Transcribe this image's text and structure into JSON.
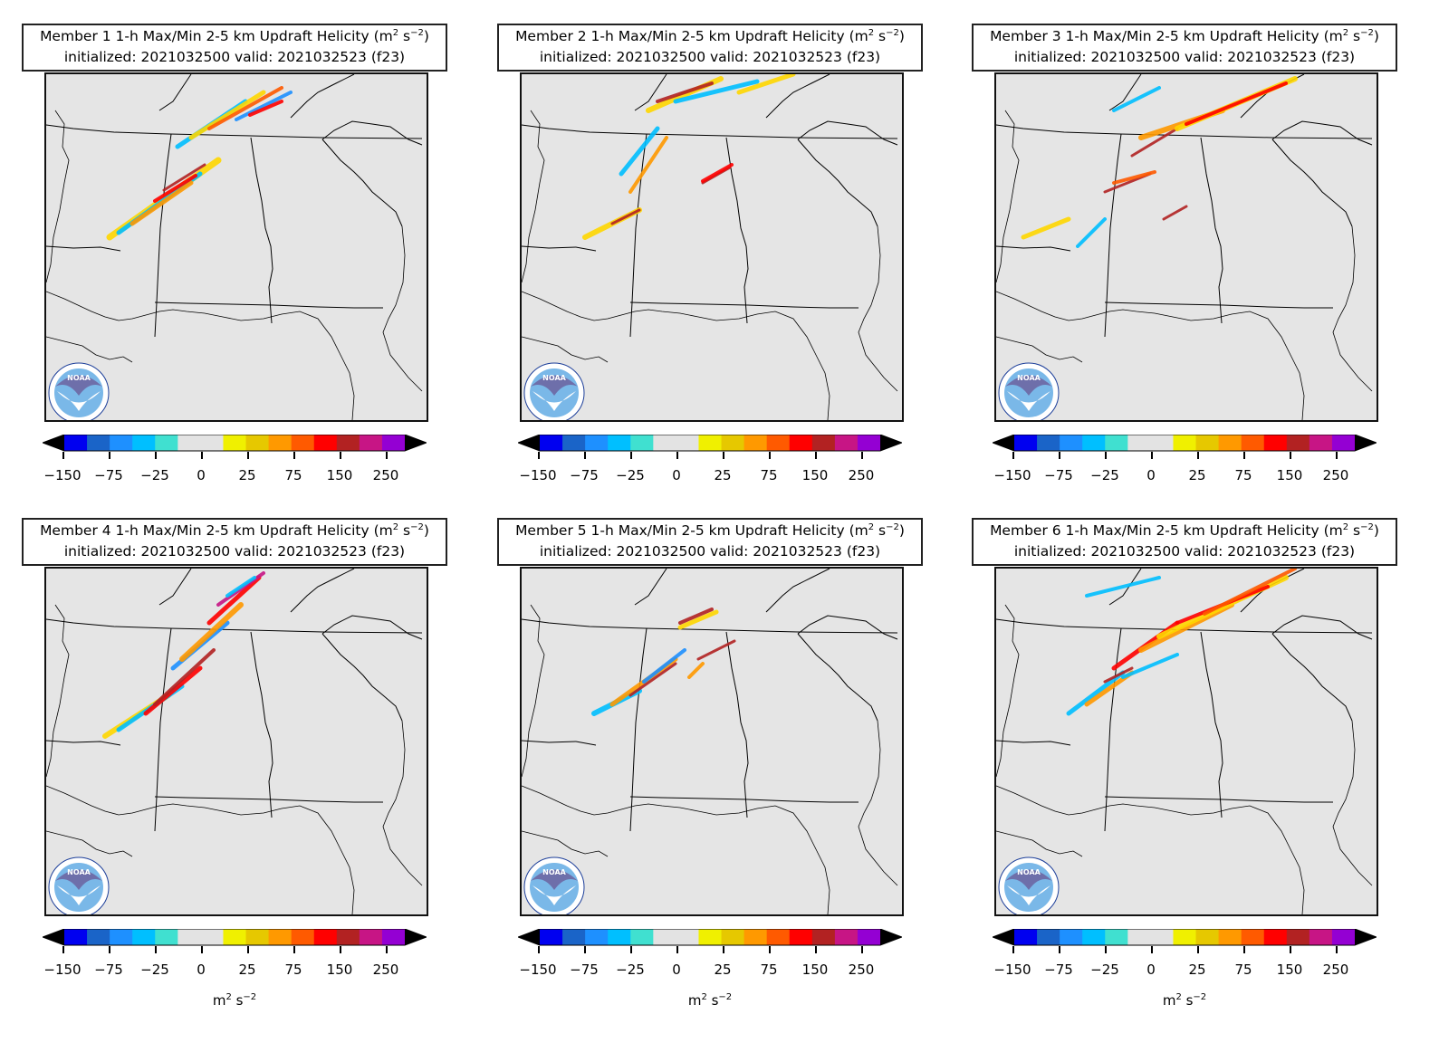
{
  "figure": {
    "panels": [
      {
        "member_label": "Member 1",
        "line1": "1-h Max/Min 2-5 km Updraft Helicity (m",
        "line1_tail": " s",
        "init_line": "initialized: 2021032500 valid: 2021032523 (f23)",
        "show_units": false
      },
      {
        "member_label": "Member 2",
        "line1": "1-h Max/Min 2-5 km Updraft Helicity (m",
        "line1_tail": " s",
        "init_line": "initialized: 2021032500 valid: 2021032523 (f23)",
        "show_units": false
      },
      {
        "member_label": "Member 3",
        "line1": "1-h Max/Min 2-5 km Updraft Helicity (m",
        "line1_tail": " s",
        "init_line": "initialized: 2021032500 valid: 2021032523 (f23)",
        "show_units": false
      },
      {
        "member_label": "Member 4",
        "line1": "1-h Max/Min 2-5 km Updraft Helicity (m",
        "line1_tail": " s",
        "init_line": "initialized: 2021032500 valid: 2021032523 (f23)",
        "show_units": true
      },
      {
        "member_label": "Member 5",
        "line1": "1-h Max/Min 2-5 km Updraft Helicity (m",
        "line1_tail": " s",
        "init_line": "initialized: 2021032500 valid: 2021032523 (f23)",
        "show_units": true
      },
      {
        "member_label": "Member 6",
        "line1": "1-h Max/Min 2-5 km Updraft Helicity (m",
        "line1_tail": " s",
        "init_line": "initialized: 2021032500 valid: 2021032523 (f23)",
        "show_units": true
      }
    ],
    "title_sup_2": "2",
    "title_sup_neg2": "−2",
    "title_close": ")",
    "logo_text": "NOAA",
    "colorbar": {
      "ticks": [
        "−150",
        "−75",
        "−25",
        "0",
        "25",
        "75",
        "150",
        "250"
      ],
      "colors": [
        "#0000f0",
        "#1a64c8",
        "#1e90ff",
        "#00bfff",
        "#40e0d0",
        "#e3e3e3",
        "#e3e3e3",
        "#f0f000",
        "#e6c800",
        "#ff9900",
        "#ff5a00",
        "#ff0000",
        "#b22222",
        "#c71585",
        "#9400d3"
      ],
      "under_color": "#000000",
      "over_color": "#000000",
      "units_base": "m",
      "units_sup1": "2",
      "units_mid": " s",
      "units_sup2": "−2"
    },
    "state_border_color": "#000000",
    "map_background": "#e5e5e5"
  }
}
